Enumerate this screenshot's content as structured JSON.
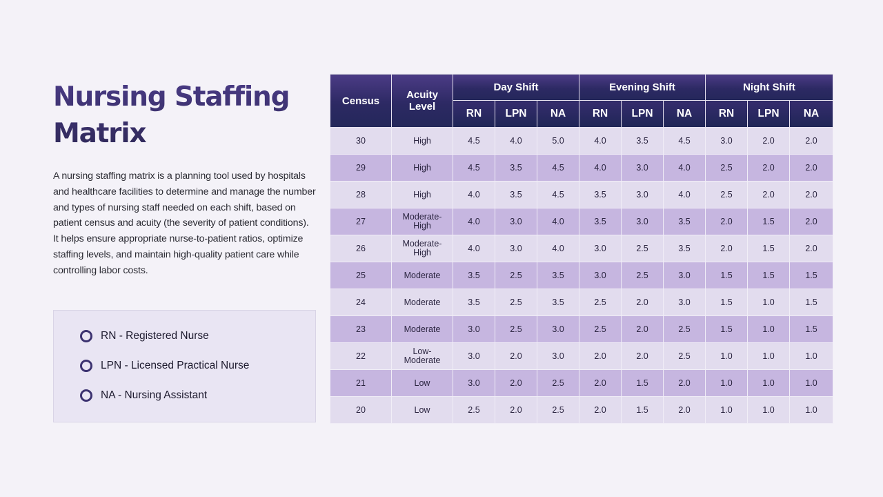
{
  "title": "Nursing Staffing Matrix",
  "description": "A nursing staffing matrix is a planning tool used by hospitals and healthcare facilities to determine and manage the number and types of nursing staff needed on each shift, based on patient census and acuity (the severity of patient conditions). It helps ensure appropriate nurse-to-patient ratios, optimize staffing levels, and maintain high-quality patient care while controlling labor costs.",
  "legend": [
    "RN - Registered Nurse",
    "LPN - Licensed Practical Nurse",
    "NA - Nursing Assistant"
  ],
  "table": {
    "headers": {
      "census": "Census",
      "acuity": "Acuity Level",
      "day": "Day Shift",
      "evening": "Evening Shift",
      "night": "Night Shift",
      "roles": [
        "RN",
        "LPN",
        "NA",
        "RN",
        "LPN",
        "NA",
        "RN",
        "LPN",
        "NA"
      ]
    },
    "rows": [
      [
        "30",
        "High",
        "4.5",
        "4.0",
        "5.0",
        "4.0",
        "3.5",
        "4.5",
        "3.0",
        "2.0",
        "2.0"
      ],
      [
        "29",
        "High",
        "4.5",
        "3.5",
        "4.5",
        "4.0",
        "3.0",
        "4.0",
        "2.5",
        "2.0",
        "2.0"
      ],
      [
        "28",
        "High",
        "4.0",
        "3.5",
        "4.5",
        "3.5",
        "3.0",
        "4.0",
        "2.5",
        "2.0",
        "2.0"
      ],
      [
        "27",
        "Moderate-High",
        "4.0",
        "3.0",
        "4.0",
        "3.5",
        "3.0",
        "3.5",
        "2.0",
        "1.5",
        "2.0"
      ],
      [
        "26",
        "Moderate-High",
        "4.0",
        "3.0",
        "4.0",
        "3.0",
        "2.5",
        "3.5",
        "2.0",
        "1.5",
        "2.0"
      ],
      [
        "25",
        "Moderate",
        "3.5",
        "2.5",
        "3.5",
        "3.0",
        "2.5",
        "3.0",
        "1.5",
        "1.5",
        "1.5"
      ],
      [
        "24",
        "Moderate",
        "3.5",
        "2.5",
        "3.5",
        "2.5",
        "2.0",
        "3.0",
        "1.5",
        "1.0",
        "1.5"
      ],
      [
        "23",
        "Moderate",
        "3.0",
        "2.5",
        "3.0",
        "2.5",
        "2.0",
        "2.5",
        "1.5",
        "1.0",
        "1.5"
      ],
      [
        "22",
        "Low-Moderate",
        "3.0",
        "2.0",
        "3.0",
        "2.0",
        "2.0",
        "2.5",
        "1.0",
        "1.0",
        "1.0"
      ],
      [
        "21",
        "Low",
        "3.0",
        "2.0",
        "2.5",
        "2.0",
        "1.5",
        "2.0",
        "1.0",
        "1.0",
        "1.0"
      ],
      [
        "20",
        "Low",
        "2.5",
        "2.0",
        "2.5",
        "2.0",
        "1.5",
        "2.0",
        "1.0",
        "1.0",
        "1.0"
      ]
    ]
  },
  "colors": {
    "header": "#2c2963",
    "row_light": "#e2dcee",
    "row_dark": "#c6b6e0",
    "title": "#3a2f6e",
    "legend_bg": "#e9e5f3",
    "background": "#f4f2f8"
  }
}
